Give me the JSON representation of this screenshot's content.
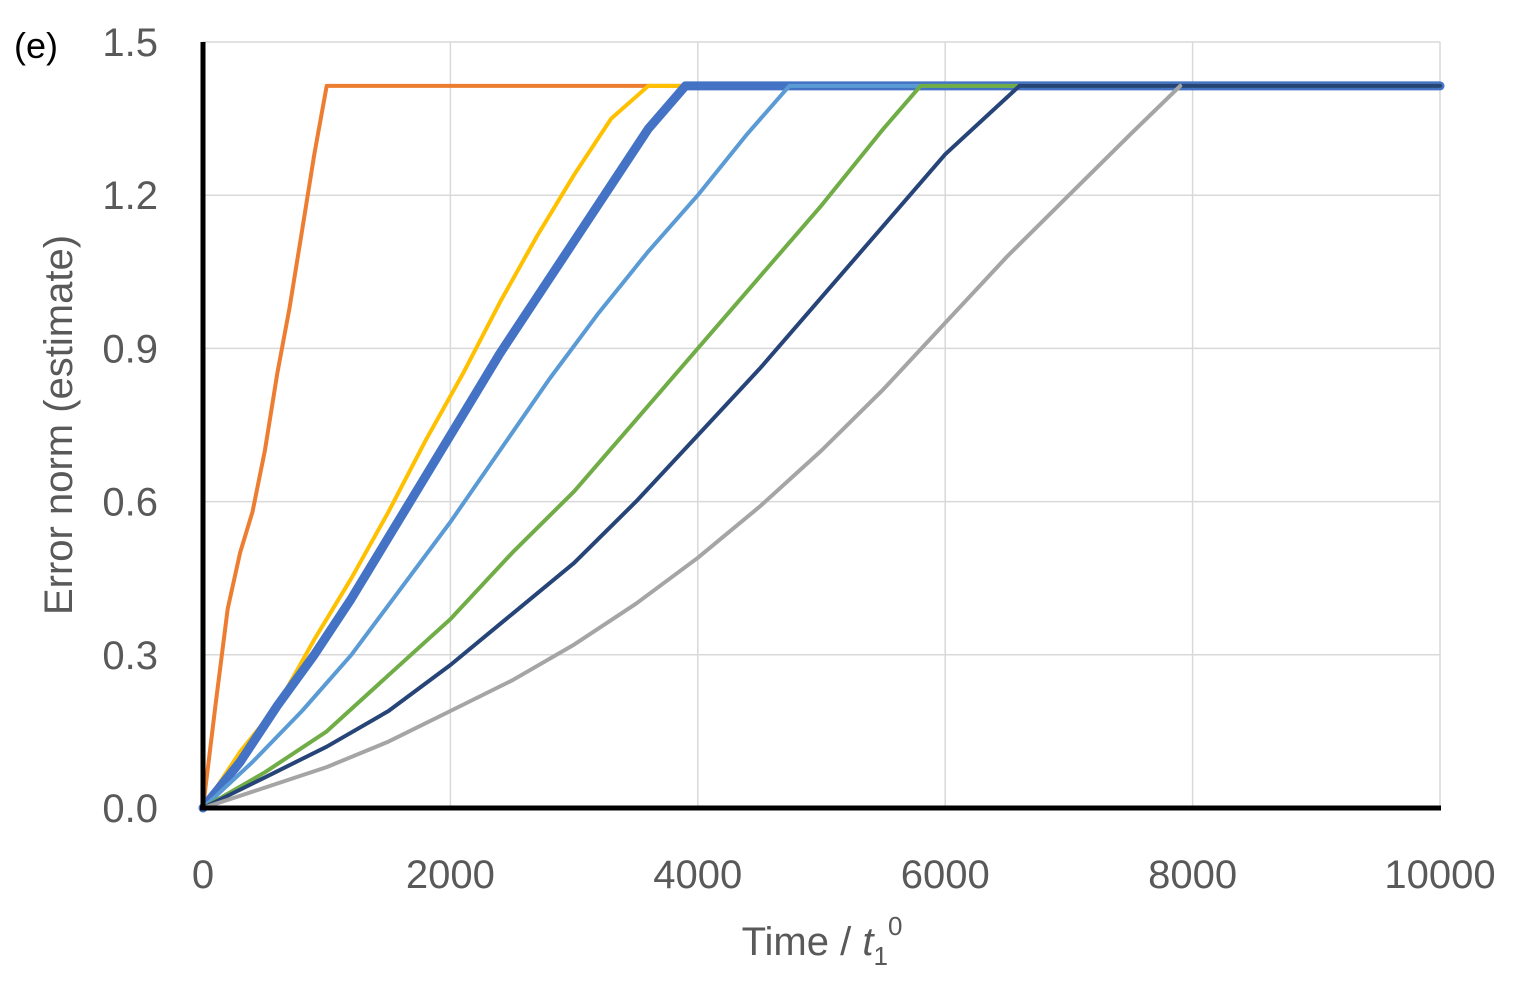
{
  "panel_label": "(e)",
  "chart_data": {
    "type": "line",
    "title": "",
    "xlabel_prefix": "Time / ",
    "xlabel_var": "t",
    "xlabel_sub": "1",
    "xlabel_sup": "0",
    "ylabel": "Error norm (estimate)",
    "xlim": [
      0,
      10000
    ],
    "ylim": [
      0,
      1.5
    ],
    "xticks": [
      0,
      2000,
      4000,
      6000,
      8000,
      10000
    ],
    "xtick_labels": [
      "0",
      "2000",
      "4000",
      "6000",
      "8000",
      "10000"
    ],
    "yticks": [
      0,
      0.3,
      0.6,
      0.9,
      1.2,
      1.5
    ],
    "ytick_labels": [
      "0.0",
      "0.3",
      "0.6",
      "0.9",
      "1.2",
      "1.5"
    ],
    "grid": true,
    "series": [
      {
        "color": "#ED7D31",
        "line_weight": "medium",
        "x": [
          0,
          100,
          200,
          300,
          400,
          500,
          600,
          700,
          800,
          900,
          1000,
          10000
        ],
        "y": [
          0,
          0.2,
          0.39,
          0.5,
          0.58,
          0.7,
          0.85,
          0.98,
          1.13,
          1.28,
          1.414,
          1.414
        ]
      },
      {
        "color": "#FFC000",
        "line_weight": "medium",
        "x": [
          0,
          300,
          600,
          900,
          1200,
          1500,
          1800,
          2100,
          2400,
          2700,
          3000,
          3300,
          3600,
          10000
        ],
        "y": [
          0,
          0.11,
          0.2,
          0.33,
          0.45,
          0.58,
          0.72,
          0.85,
          0.99,
          1.12,
          1.24,
          1.35,
          1.414,
          1.414
        ]
      },
      {
        "color": "#4472C4",
        "line_weight": "thick",
        "x": [
          0,
          300,
          600,
          900,
          1200,
          1500,
          1800,
          2100,
          2400,
          2700,
          3000,
          3300,
          3600,
          3900,
          10000
        ],
        "y": [
          0,
          0.09,
          0.2,
          0.3,
          0.41,
          0.53,
          0.65,
          0.77,
          0.89,
          1.0,
          1.11,
          1.22,
          1.33,
          1.414,
          1.414
        ]
      },
      {
        "color": "#5B9BD5",
        "line_weight": "medium",
        "x": [
          0,
          400,
          800,
          1200,
          1600,
          2000,
          2400,
          2800,
          3200,
          3600,
          4000,
          4400,
          4740,
          10000
        ],
        "y": [
          0,
          0.09,
          0.19,
          0.3,
          0.43,
          0.56,
          0.7,
          0.84,
          0.97,
          1.09,
          1.2,
          1.32,
          1.414,
          1.414
        ]
      },
      {
        "color": "#70AD47",
        "line_weight": "medium",
        "x": [
          0,
          500,
          1000,
          1500,
          2000,
          2500,
          3000,
          3500,
          4000,
          4500,
          5000,
          5500,
          5800,
          10000
        ],
        "y": [
          0,
          0.07,
          0.15,
          0.26,
          0.37,
          0.5,
          0.62,
          0.76,
          0.9,
          1.04,
          1.18,
          1.33,
          1.414,
          1.414
        ]
      },
      {
        "color": "#264478",
        "line_weight": "medium",
        "x": [
          0,
          500,
          1000,
          1500,
          2000,
          2500,
          3000,
          3500,
          4000,
          4500,
          5000,
          5500,
          6000,
          6600,
          10000
        ],
        "y": [
          0,
          0.06,
          0.12,
          0.19,
          0.28,
          0.38,
          0.48,
          0.6,
          0.73,
          0.86,
          1.0,
          1.14,
          1.28,
          1.414,
          1.414
        ]
      },
      {
        "color": "#A5A5A5",
        "line_weight": "medium",
        "x": [
          0,
          500,
          1000,
          1500,
          2000,
          2500,
          3000,
          3500,
          4000,
          4500,
          5000,
          5500,
          6000,
          6500,
          7000,
          7500,
          7900
        ],
        "y": [
          0,
          0.04,
          0.08,
          0.13,
          0.19,
          0.25,
          0.32,
          0.4,
          0.49,
          0.59,
          0.7,
          0.82,
          0.95,
          1.08,
          1.2,
          1.32,
          1.414
        ]
      }
    ]
  }
}
